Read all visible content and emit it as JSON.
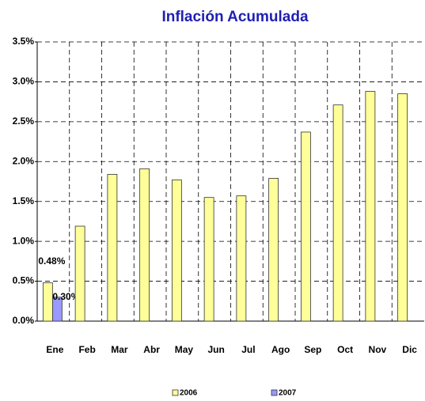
{
  "chart_data": {
    "type": "bar",
    "title": "Inflación Acumulada",
    "categories": [
      "Ene",
      "Feb",
      "Mar",
      "Abr",
      "May",
      "Jun",
      "Jul",
      "Ago",
      "Sep",
      "Oct",
      "Nov",
      "Dic"
    ],
    "series": [
      {
        "name": "2006",
        "color": "#ffff99",
        "values": [
          0.48,
          1.19,
          1.84,
          1.91,
          1.77,
          1.55,
          1.57,
          1.79,
          2.37,
          2.71,
          2.88,
          2.85
        ],
        "value_labels": [
          "0.48%",
          null,
          null,
          null,
          null,
          null,
          null,
          null,
          null,
          null,
          null,
          null
        ]
      },
      {
        "name": "2007",
        "color": "#9999ff",
        "values": [
          0.3,
          null,
          null,
          null,
          null,
          null,
          null,
          null,
          null,
          null,
          null,
          null
        ],
        "value_labels": [
          "0.30%",
          null,
          null,
          null,
          null,
          null,
          null,
          null,
          null,
          null,
          null,
          null
        ]
      }
    ],
    "ylim": [
      0,
      3.5
    ],
    "yticks": [
      {
        "value": 0,
        "label": "0.0%"
      },
      {
        "value": 0.5,
        "label": "0.5%"
      },
      {
        "value": 1,
        "label": "1.0%"
      },
      {
        "value": 1.5,
        "label": "1.5%"
      },
      {
        "value": 2,
        "label": "2.0%"
      },
      {
        "value": 2.5,
        "label": "2.5%"
      },
      {
        "value": 3,
        "label": "3.0%"
      },
      {
        "value": 3.5,
        "label": "3.5%"
      }
    ],
    "grid": true
  }
}
